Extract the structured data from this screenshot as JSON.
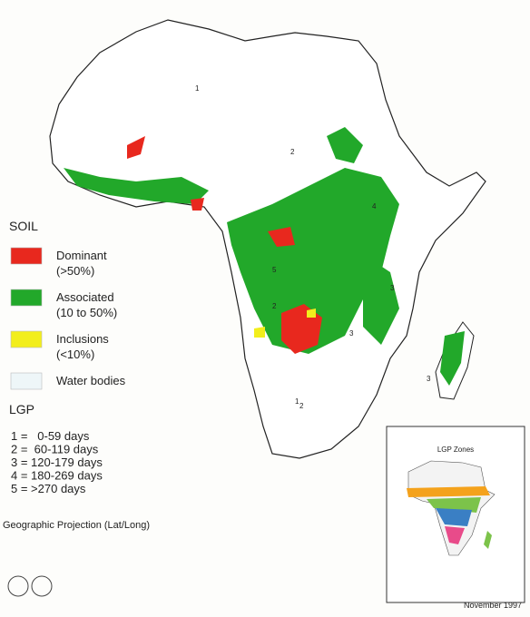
{
  "legend": {
    "soil": {
      "title": "SOIL",
      "items": [
        {
          "label": "Dominant",
          "sublabel": "(>50%)",
          "color": "#e8281e"
        },
        {
          "label": "Associated",
          "sublabel": "(10 to 50%)",
          "color": "#22a82a"
        },
        {
          "label": "Inclusions",
          "sublabel": "(<10%)",
          "color": "#f2ee1c"
        },
        {
          "label": "Water bodies",
          "color": "#eef6f8"
        }
      ]
    },
    "lgp": {
      "title": "LGP",
      "items": [
        "1 =   0-59 days",
        "2 =  60-119 days",
        "3 = 120-179 days",
        "4 = 180-269 days",
        "5 = >270 days"
      ]
    }
  },
  "projection": "Geographic Projection (Lat/Long)",
  "map": {
    "zone_labels": [
      "1",
      "2",
      "3",
      "4",
      "5",
      "3",
      "2",
      "3",
      "1",
      "2"
    ]
  },
  "inset": {
    "title": "LGP Zones"
  },
  "date": "November 1997"
}
